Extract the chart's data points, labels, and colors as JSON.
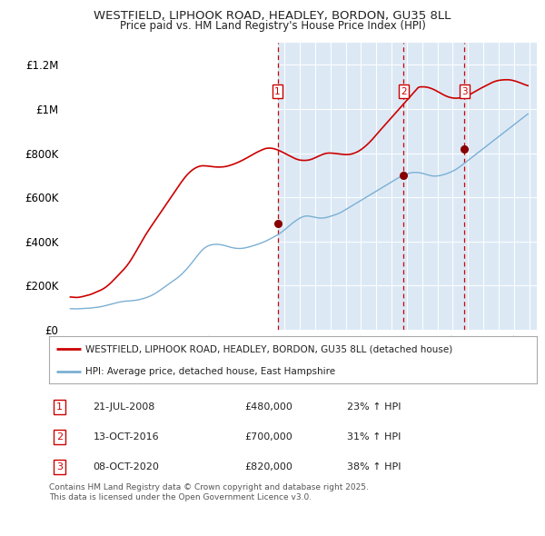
{
  "title1": "WESTFIELD, LIPHOOK ROAD, HEADLEY, BORDON, GU35 8LL",
  "title2": "Price paid vs. HM Land Registry's House Price Index (HPI)",
  "ylabel_ticks": [
    "£0",
    "£200K",
    "£400K",
    "£600K",
    "£800K",
    "£1M",
    "£1.2M"
  ],
  "ytick_vals": [
    0,
    200000,
    400000,
    600000,
    800000,
    1000000,
    1200000
  ],
  "ylim": [
    0,
    1300000
  ],
  "xlim_start": 1994.5,
  "xlim_end": 2025.5,
  "bg_color": "#ffffff",
  "plot_bg_color": "#dce9f5",
  "plot_bg_white": "#ffffff",
  "grid_color": "#ffffff",
  "red_line_color": "#cc0000",
  "blue_line_color": "#7bafd4",
  "sale_marker_color": "#cc0000",
  "dashed_line_color": "#cc0000",
  "shade_start": 2008.55,
  "sales": [
    {
      "num": 1,
      "date": "21-JUL-2008",
      "price": 480000,
      "hpi_pct": "23%",
      "year": 2008.55
    },
    {
      "num": 2,
      "date": "13-OCT-2016",
      "price": 700000,
      "hpi_pct": "31%",
      "year": 2016.78
    },
    {
      "num": 3,
      "date": "08-OCT-2020",
      "price": 820000,
      "hpi_pct": "38%",
      "year": 2020.77
    }
  ],
  "legend_label_red": "WESTFIELD, LIPHOOK ROAD, HEADLEY, BORDON, GU35 8LL (detached house)",
  "legend_label_blue": "HPI: Average price, detached house, East Hampshire",
  "footnote": "Contains HM Land Registry data © Crown copyright and database right 2025.\nThis data is licensed under the Open Government Licence v3.0.",
  "hpi_monthly": [
    95000,
    94800,
    94500,
    94200,
    94000,
    93800,
    94200,
    94800,
    95200,
    95500,
    95800,
    96000,
    96200,
    96500,
    96800,
    97200,
    97800,
    98500,
    99200,
    100000,
    100800,
    101500,
    102200,
    103000,
    104000,
    105200,
    106500,
    108000,
    109500,
    111000,
    112500,
    114000,
    115500,
    117000,
    118500,
    120000,
    121500,
    123000,
    124200,
    125500,
    126500,
    127500,
    128200,
    129000,
    129500,
    130000,
    130200,
    130500,
    131000,
    131500,
    132200,
    133000,
    133800,
    134800,
    136000,
    137500,
    139000,
    140500,
    142200,
    144000,
    146000,
    148200,
    150500,
    153000,
    155800,
    158800,
    162000,
    165500,
    169200,
    173000,
    177000,
    181000,
    185000,
    189200,
    193500,
    197800,
    202000,
    206000,
    210000,
    214000,
    218000,
    222000,
    226000,
    230000,
    234500,
    239200,
    244200,
    249500,
    255000,
    260800,
    266800,
    273000,
    279500,
    286200,
    293200,
    300500,
    308000,
    315500,
    323000,
    330500,
    337800,
    344800,
    351500,
    357800,
    363500,
    368500,
    372800,
    376500,
    379500,
    381800,
    383500,
    384800,
    385800,
    386500,
    386800,
    386800,
    386500,
    386000,
    385200,
    384200,
    383000,
    381500,
    379800,
    378000,
    376200,
    374500,
    373000,
    371800,
    370500,
    369500,
    368800,
    368200,
    368000,
    368000,
    368200,
    368800,
    369500,
    370500,
    371800,
    373000,
    374500,
    376000,
    377800,
    379500,
    381200,
    383000,
    384800,
    386800,
    388800,
    391000,
    393200,
    395500,
    398000,
    400500,
    403200,
    406000,
    409000,
    412000,
    415000,
    418000,
    421000,
    424200,
    427500,
    431000,
    434800,
    438800,
    443000,
    447500,
    452200,
    457000,
    462000,
    467000,
    472000,
    476800,
    481500,
    486000,
    490200,
    494200,
    498000,
    501800,
    505200,
    508200,
    510800,
    512800,
    514200,
    515000,
    515200,
    514800,
    514000,
    513000,
    511800,
    510500,
    509200,
    508000,
    507000,
    506200,
    505800,
    505800,
    506000,
    506500,
    507500,
    508800,
    510200,
    511800,
    513500,
    515200,
    517000,
    519000,
    521000,
    523200,
    525500,
    528000,
    530800,
    534000,
    537200,
    540500,
    544000,
    547500,
    551000,
    554500,
    558000,
    561500,
    565000,
    568500,
    572000,
    575500,
    579000,
    582500,
    586000,
    589500,
    593000,
    596500,
    600000,
    603500,
    607000,
    610500,
    614000,
    617500,
    621000,
    624500,
    628000,
    631500,
    635000,
    638500,
    642000,
    645500,
    649000,
    652500,
    656000,
    659500,
    663000,
    666500,
    670000,
    673500,
    677000,
    680500,
    684000,
    687000,
    690000,
    693000,
    695800,
    698500,
    701000,
    703500,
    705800,
    707800,
    709500,
    710800,
    711800,
    712500,
    712800,
    712800,
    712500,
    712000,
    711200,
    710200,
    709000,
    707500,
    705800,
    704000,
    702200,
    700500,
    699000,
    697800,
    696800,
    696200,
    696000,
    696200,
    696800,
    697500,
    698500,
    699800,
    701200,
    702800,
    704500,
    706500,
    708500,
    710800,
    713200,
    715800,
    718500,
    721500,
    724800,
    728200,
    732000,
    736000,
    740200,
    744500,
    749000,
    753500,
    758000,
    762500,
    767000,
    771500,
    776000,
    780500,
    785000,
    789500,
    794000,
    798500,
    803000,
    807500,
    812000,
    816500,
    821000,
    825500,
    830000,
    834500,
    839000,
    843500,
    848000,
    852500,
    857000,
    861500,
    866000,
    870500,
    875000,
    879500,
    884000,
    888500,
    893000,
    897500,
    902000,
    906500,
    911000,
    915500,
    920000,
    924500,
    929000,
    933500,
    938000,
    942500,
    947000,
    951500,
    956000,
    960500,
    965000,
    969500,
    974000,
    978000
  ],
  "red_monthly": [
    148000,
    147500,
    147000,
    146500,
    146000,
    145800,
    146200,
    147000,
    148000,
    149200,
    150500,
    152000,
    153500,
    155000,
    156500,
    158000,
    160000,
    162000,
    164500,
    167000,
    169500,
    172000,
    174500,
    177000,
    179500,
    182500,
    185800,
    189500,
    193500,
    198000,
    202800,
    208000,
    213500,
    219200,
    225000,
    231000,
    237000,
    243000,
    249000,
    255000,
    261000,
    267000,
    273500,
    280000,
    287000,
    294500,
    302500,
    311000,
    320000,
    329500,
    339200,
    349000,
    359000,
    369000,
    379000,
    389000,
    399000,
    409000,
    419000,
    429000,
    438000,
    447000,
    455800,
    464500,
    473000,
    481500,
    490000,
    498500,
    507000,
    515500,
    524000,
    532500,
    541000,
    549500,
    558000,
    566500,
    575000,
    583500,
    592000,
    600500,
    609000,
    617500,
    626000,
    634500,
    643000,
    651500,
    659800,
    668000,
    675800,
    683500,
    690800,
    697800,
    704200,
    710000,
    715500,
    720500,
    725000,
    729000,
    732500,
    735500,
    738000,
    740000,
    741500,
    742500,
    743000,
    742800,
    742500,
    742000,
    741500,
    740800,
    740000,
    739200,
    738500,
    738000,
    737500,
    737200,
    737000,
    737000,
    737200,
    737500,
    738000,
    738800,
    739800,
    741000,
    742500,
    744200,
    746000,
    748000,
    750000,
    752200,
    754500,
    757000,
    759500,
    762200,
    765000,
    767800,
    770800,
    773800,
    777000,
    780200,
    783500,
    786800,
    790200,
    793500,
    796800,
    800000,
    803000,
    806000,
    808800,
    811500,
    814000,
    816500,
    818800,
    820800,
    822000,
    822800,
    823000,
    822800,
    822200,
    821200,
    819800,
    818200,
    816200,
    814000,
    811500,
    808800,
    806000,
    803000,
    800000,
    797000,
    794000,
    791000,
    788000,
    785000,
    782000,
    779200,
    776500,
    774000,
    772000,
    770200,
    768800,
    768000,
    767500,
    767200,
    767200,
    767500,
    768000,
    769000,
    770200,
    772000,
    774000,
    776500,
    779000,
    781800,
    784500,
    787200,
    789800,
    792200,
    794500,
    796500,
    798200,
    799500,
    800200,
    800500,
    800500,
    800200,
    799800,
    799200,
    798500,
    797800,
    797000,
    796200,
    795500,
    794800,
    794200,
    793800,
    793500,
    793500,
    793800,
    794500,
    795500,
    796800,
    798500,
    800500,
    802800,
    805500,
    808500,
    812000,
    815800,
    820000,
    824500,
    829200,
    834200,
    839500,
    845000,
    850800,
    856800,
    863000,
    869500,
    876200,
    883000,
    889800,
    896500,
    903000,
    909500,
    916000,
    922500,
    929000,
    935500,
    942000,
    948500,
    955000,
    961500,
    968000,
    974500,
    981000,
    987500,
    994000,
    1000500,
    1007000,
    1013500,
    1020000,
    1026500,
    1033000,
    1039500,
    1046000,
    1052500,
    1059000,
    1065500,
    1072000,
    1078500,
    1085000,
    1091500,
    1098000,
    1100000,
    1100500,
    1100800,
    1100800,
    1100500,
    1099800,
    1098800,
    1097500,
    1095800,
    1093800,
    1091500,
    1089000,
    1086200,
    1083200,
    1080000,
    1076800,
    1073500,
    1070200,
    1067000,
    1064000,
    1061200,
    1058500,
    1056200,
    1054200,
    1052500,
    1051200,
    1050200,
    1049500,
    1049200,
    1049200,
    1049500,
    1050200,
    1051200,
    1052500,
    1054000,
    1055800,
    1057800,
    1060000,
    1062500,
    1065200,
    1068000,
    1071000,
    1074200,
    1077500,
    1080800,
    1084200,
    1087500,
    1090800,
    1094000,
    1097000,
    1100000,
    1103000,
    1106000,
    1109000,
    1112000,
    1115000,
    1117800,
    1120500,
    1123000,
    1125200,
    1127000,
    1128500,
    1129800,
    1130800,
    1131500,
    1132000,
    1132500,
    1132800,
    1133000,
    1133000,
    1132800,
    1132200,
    1131200,
    1130000,
    1128500,
    1127000,
    1125200,
    1123200,
    1121000,
    1118800,
    1116500,
    1114200,
    1112000,
    1109800,
    1107800,
    1106000
  ]
}
